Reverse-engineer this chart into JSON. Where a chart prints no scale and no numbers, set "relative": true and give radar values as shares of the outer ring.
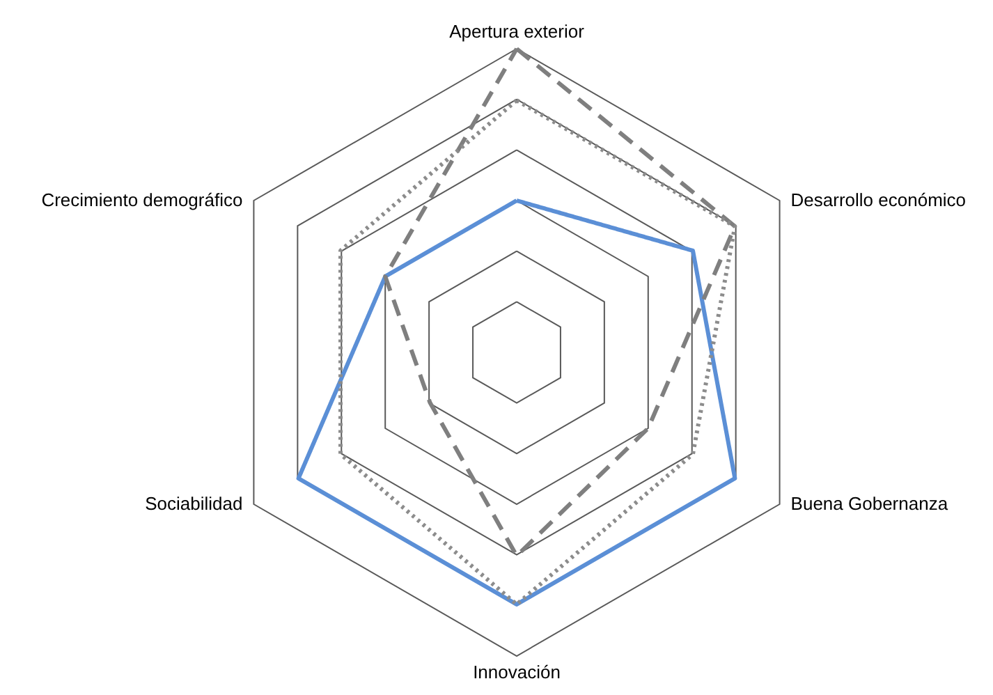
{
  "chart_data": {
    "type": "radar",
    "relative": true,
    "grid": true,
    "categories": [
      "Apertura exterior",
      "Desarrollo económico",
      "Buena Gobernanza",
      "Innovación",
      "Sociabilidad",
      "Crecimiento demográfico"
    ],
    "series": [
      {
        "color": "#5b8fd6",
        "line_style": "solid",
        "values": [
          0.5,
          0.67,
          0.83,
          0.83,
          0.83,
          0.5
        ]
      },
      {
        "color": "#7f7f7f",
        "line_style": "dashed",
        "values": [
          1,
          0.83,
          0.5,
          0.67,
          0.33,
          0.5
        ]
      },
      {
        "color": "#8c8c8c",
        "line_style": "dotted",
        "values": [
          0.83,
          0.83,
          0.67,
          0.83,
          0.67,
          0.67
        ]
      }
    ]
  }
}
